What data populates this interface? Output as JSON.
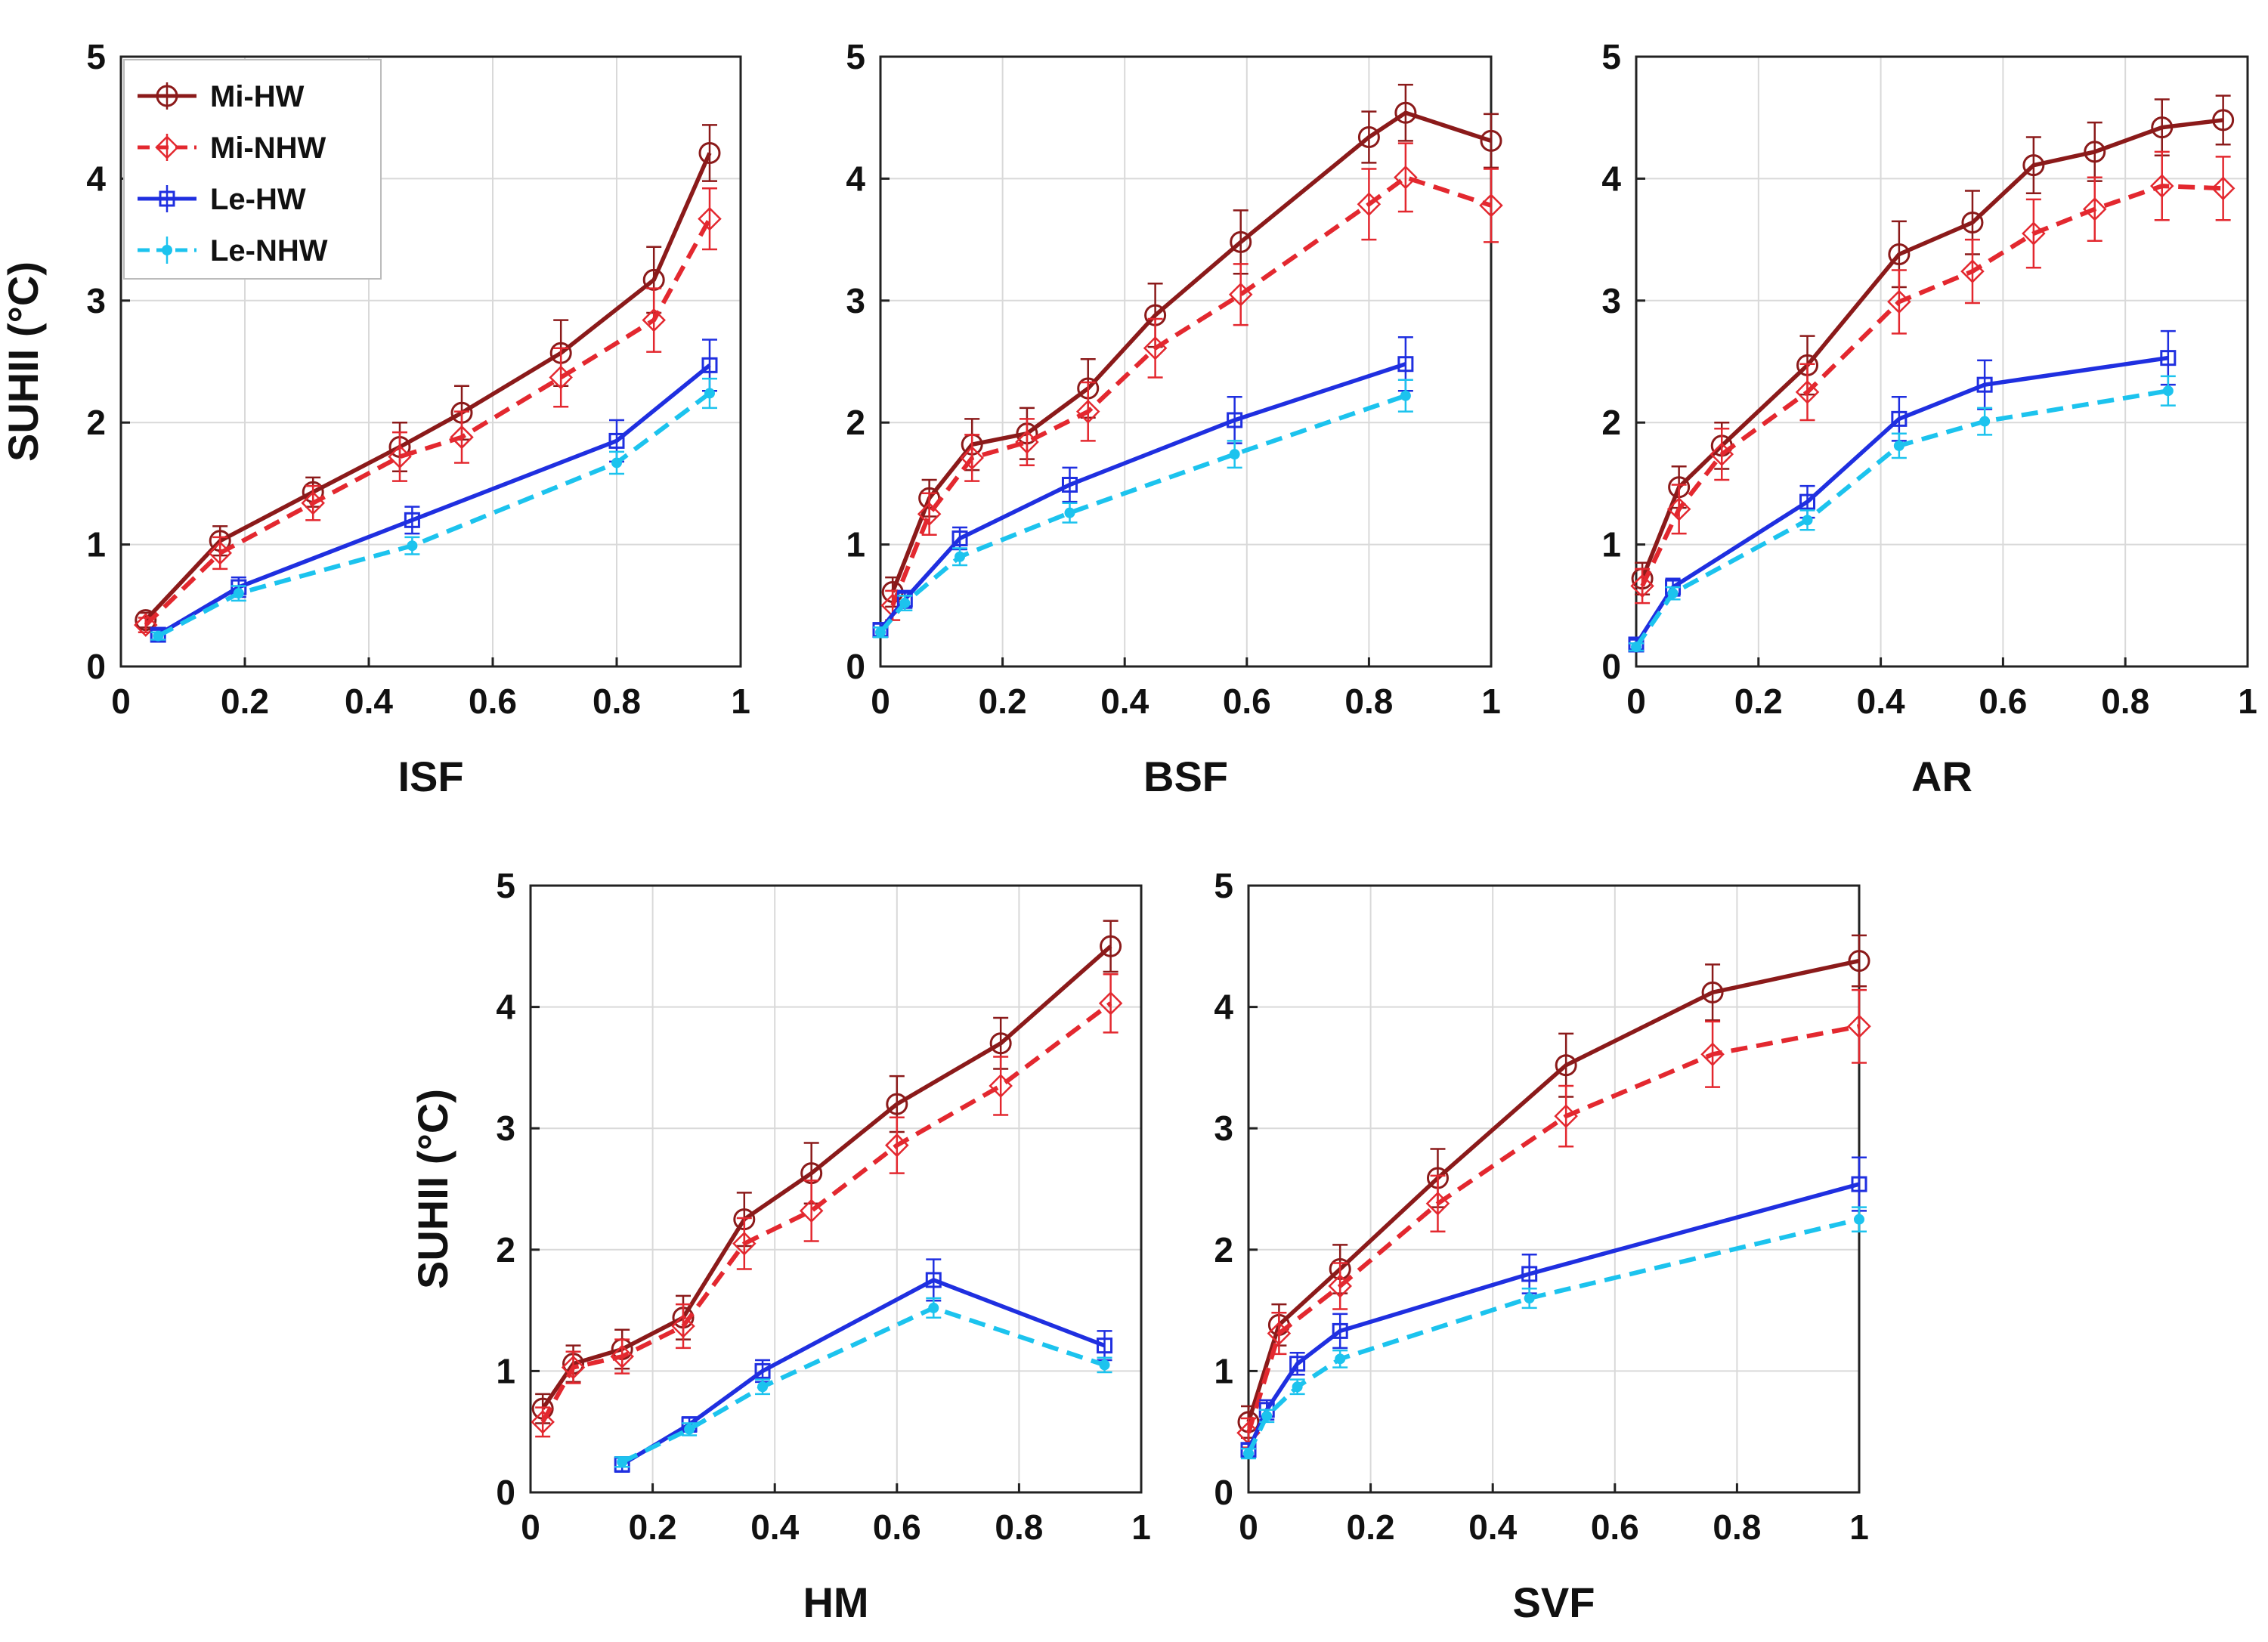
{
  "chart_data": [
    {
      "type": "line",
      "xlabel": "ISF",
      "ylabel": "SUHII (°C)",
      "xlim": [
        0,
        1
      ],
      "ylim": [
        0,
        5
      ],
      "grid": true,
      "legend": "top-left",
      "series": [
        {
          "name": "Mi-HW",
          "x": [
            0.04,
            0.16,
            0.31,
            0.45,
            0.55,
            0.71,
            0.86,
            0.95
          ],
          "y": [
            0.38,
            1.03,
            1.43,
            1.8,
            2.08,
            2.57,
            3.17,
            4.21
          ],
          "err": [
            0.06,
            0.12,
            0.12,
            0.2,
            0.22,
            0.27,
            0.27,
            0.23
          ]
        },
        {
          "name": "Mi-NHW",
          "x": [
            0.04,
            0.16,
            0.31,
            0.45,
            0.55,
            0.71,
            0.86,
            0.95
          ],
          "y": [
            0.34,
            0.93,
            1.34,
            1.72,
            1.88,
            2.37,
            2.84,
            3.67
          ],
          "err": [
            0.06,
            0.13,
            0.14,
            0.2,
            0.21,
            0.24,
            0.26,
            0.25
          ]
        },
        {
          "name": "Le-HW",
          "x": [
            0.06,
            0.19,
            0.47,
            0.8,
            0.95
          ],
          "y": [
            0.26,
            0.65,
            1.2,
            1.85,
            2.47
          ],
          "err": [
            0.04,
            0.08,
            0.11,
            0.17,
            0.21
          ]
        },
        {
          "name": "Le-NHW",
          "x": [
            0.06,
            0.19,
            0.47,
            0.8,
            0.95
          ],
          "y": [
            0.25,
            0.6,
            0.99,
            1.67,
            2.24
          ],
          "err": [
            0.03,
            0.06,
            0.07,
            0.09,
            0.12
          ]
        }
      ]
    },
    {
      "type": "line",
      "xlabel": "BSF",
      "ylabel": "",
      "xlim": [
        0,
        1
      ],
      "ylim": [
        0,
        5
      ],
      "grid": true,
      "series": [
        {
          "name": "Mi-HW",
          "x": [
            0.02,
            0.08,
            0.15,
            0.24,
            0.34,
            0.45,
            0.59,
            0.8,
            0.86,
            1.0
          ],
          "y": [
            0.61,
            1.38,
            1.82,
            1.91,
            2.28,
            2.88,
            3.48,
            4.34,
            4.54,
            4.31
          ],
          "err": [
            0.12,
            0.15,
            0.21,
            0.21,
            0.24,
            0.26,
            0.26,
            0.21,
            0.23,
            0.22
          ]
        },
        {
          "name": "Mi-NHW",
          "x": [
            0.02,
            0.08,
            0.15,
            0.24,
            0.34,
            0.45,
            0.59,
            0.8,
            0.86,
            1.0
          ],
          "y": [
            0.5,
            1.25,
            1.71,
            1.84,
            2.09,
            2.61,
            3.05,
            3.79,
            4.01,
            3.78
          ],
          "err": [
            0.12,
            0.17,
            0.19,
            0.19,
            0.24,
            0.24,
            0.25,
            0.29,
            0.28,
            0.3
          ]
        },
        {
          "name": "Le-HW",
          "x": [
            0.0,
            0.04,
            0.13,
            0.31,
            0.58,
            0.86
          ],
          "y": [
            0.3,
            0.55,
            1.05,
            1.49,
            2.02,
            2.48
          ],
          "err": [
            0.05,
            0.07,
            0.09,
            0.14,
            0.19,
            0.22
          ]
        },
        {
          "name": "Le-NHW",
          "x": [
            0.0,
            0.04,
            0.13,
            0.31,
            0.58,
            0.86
          ],
          "y": [
            0.28,
            0.52,
            0.9,
            1.26,
            1.74,
            2.22
          ],
          "err": [
            0.04,
            0.06,
            0.07,
            0.08,
            0.11,
            0.13
          ]
        }
      ]
    },
    {
      "type": "line",
      "xlabel": "AR",
      "ylabel": "",
      "xlim": [
        0,
        1
      ],
      "ylim": [
        0,
        5
      ],
      "grid": true,
      "series": [
        {
          "name": "Mi-HW",
          "x": [
            0.01,
            0.07,
            0.14,
            0.28,
            0.43,
            0.55,
            0.65,
            0.75,
            0.86,
            0.96
          ],
          "y": [
            0.72,
            1.47,
            1.81,
            2.47,
            3.38,
            3.64,
            4.11,
            4.22,
            4.42,
            4.48
          ],
          "err": [
            0.13,
            0.17,
            0.19,
            0.24,
            0.27,
            0.26,
            0.23,
            0.24,
            0.23,
            0.2
          ]
        },
        {
          "name": "Mi-NHW",
          "x": [
            0.01,
            0.07,
            0.14,
            0.28,
            0.43,
            0.55,
            0.65,
            0.75,
            0.86,
            0.96
          ],
          "y": [
            0.66,
            1.29,
            1.74,
            2.25,
            2.99,
            3.24,
            3.55,
            3.75,
            3.94,
            3.92
          ],
          "err": [
            0.14,
            0.2,
            0.21,
            0.23,
            0.26,
            0.26,
            0.28,
            0.26,
            0.28,
            0.26
          ]
        },
        {
          "name": "Le-HW",
          "x": [
            0.0,
            0.06,
            0.28,
            0.43,
            0.57,
            0.87
          ],
          "y": [
            0.18,
            0.65,
            1.35,
            2.03,
            2.31,
            2.53
          ],
          "err": [
            0.04,
            0.07,
            0.13,
            0.18,
            0.2,
            0.22
          ]
        },
        {
          "name": "Le-NHW",
          "x": [
            0.0,
            0.06,
            0.28,
            0.43,
            0.57,
            0.87
          ],
          "y": [
            0.16,
            0.6,
            1.2,
            1.81,
            2.01,
            2.26
          ],
          "err": [
            0.03,
            0.05,
            0.08,
            0.1,
            0.11,
            0.12
          ]
        }
      ]
    },
    {
      "type": "line",
      "xlabel": "HM",
      "ylabel": "SUHII (°C)",
      "xlim": [
        0,
        1
      ],
      "ylim": [
        0,
        5
      ],
      "grid": true,
      "series": [
        {
          "name": "Mi-HW",
          "x": [
            0.02,
            0.07,
            0.15,
            0.25,
            0.35,
            0.46,
            0.6,
            0.77,
            0.95
          ],
          "y": [
            0.69,
            1.06,
            1.18,
            1.44,
            2.25,
            2.63,
            3.2,
            3.7,
            4.5
          ],
          "err": [
            0.12,
            0.15,
            0.16,
            0.18,
            0.22,
            0.25,
            0.23,
            0.21,
            0.21
          ]
        },
        {
          "name": "Mi-NHW",
          "x": [
            0.02,
            0.07,
            0.15,
            0.25,
            0.35,
            0.46,
            0.6,
            0.77,
            0.95
          ],
          "y": [
            0.58,
            1.03,
            1.12,
            1.37,
            2.05,
            2.32,
            2.86,
            3.35,
            4.03
          ],
          "err": [
            0.12,
            0.13,
            0.14,
            0.18,
            0.21,
            0.25,
            0.23,
            0.24,
            0.24
          ]
        },
        {
          "name": "Le-HW",
          "x": [
            0.15,
            0.26,
            0.38,
            0.66,
            0.94
          ],
          "y": [
            0.23,
            0.56,
            1.0,
            1.75,
            1.21
          ],
          "err": [
            0.06,
            0.06,
            0.09,
            0.17,
            0.12
          ]
        },
        {
          "name": "Le-NHW",
          "x": [
            0.15,
            0.26,
            0.38,
            0.66,
            0.94
          ],
          "y": [
            0.25,
            0.52,
            0.87,
            1.52,
            1.05
          ],
          "err": [
            0.04,
            0.05,
            0.06,
            0.08,
            0.06
          ]
        }
      ]
    },
    {
      "type": "line",
      "xlabel": "SVF",
      "ylabel": "",
      "xlim": [
        0,
        1
      ],
      "ylim": [
        0,
        5
      ],
      "grid": true,
      "series": [
        {
          "name": "Mi-HW",
          "x": [
            0.0,
            0.05,
            0.15,
            0.31,
            0.52,
            0.76,
            1.0
          ],
          "y": [
            0.58,
            1.38,
            1.84,
            2.59,
            3.52,
            4.12,
            4.38
          ],
          "err": [
            0.13,
            0.17,
            0.2,
            0.24,
            0.26,
            0.23,
            0.21
          ]
        },
        {
          "name": "Mi-NHW",
          "x": [
            0.0,
            0.05,
            0.15,
            0.31,
            0.52,
            0.76,
            1.0
          ],
          "y": [
            0.49,
            1.31,
            1.7,
            2.38,
            3.1,
            3.61,
            3.84
          ],
          "err": [
            0.12,
            0.17,
            0.19,
            0.23,
            0.25,
            0.27,
            0.3
          ]
        },
        {
          "name": "Le-HW",
          "x": [
            0.0,
            0.03,
            0.08,
            0.15,
            0.46,
            1.0
          ],
          "y": [
            0.35,
            0.68,
            1.06,
            1.33,
            1.8,
            2.54
          ],
          "err": [
            0.05,
            0.08,
            0.09,
            0.14,
            0.16,
            0.22
          ]
        },
        {
          "name": "Le-NHW",
          "x": [
            0.0,
            0.03,
            0.08,
            0.15,
            0.46,
            1.0
          ],
          "y": [
            0.32,
            0.63,
            0.87,
            1.1,
            1.6,
            2.25
          ],
          "err": [
            0.04,
            0.05,
            0.06,
            0.07,
            0.08,
            0.1
          ]
        }
      ]
    }
  ],
  "series_styles": {
    "Mi-HW": {
      "color": "#8b1a1a",
      "dash": "solid",
      "marker": "circle"
    },
    "Mi-NHW": {
      "color": "#e3282f",
      "dash": "dashed",
      "marker": "diamond"
    },
    "Le-HW": {
      "color": "#1f2fe0",
      "dash": "solid",
      "marker": "square"
    },
    "Le-NHW": {
      "color": "#1cc3ee",
      "dash": "dashed",
      "marker": "dot"
    }
  },
  "tick_labels": {
    "x": [
      "0",
      "0.2",
      "0.4",
      "0.6",
      "0.8",
      "1"
    ],
    "y": [
      "0",
      "1",
      "2",
      "3",
      "4",
      "5"
    ]
  }
}
